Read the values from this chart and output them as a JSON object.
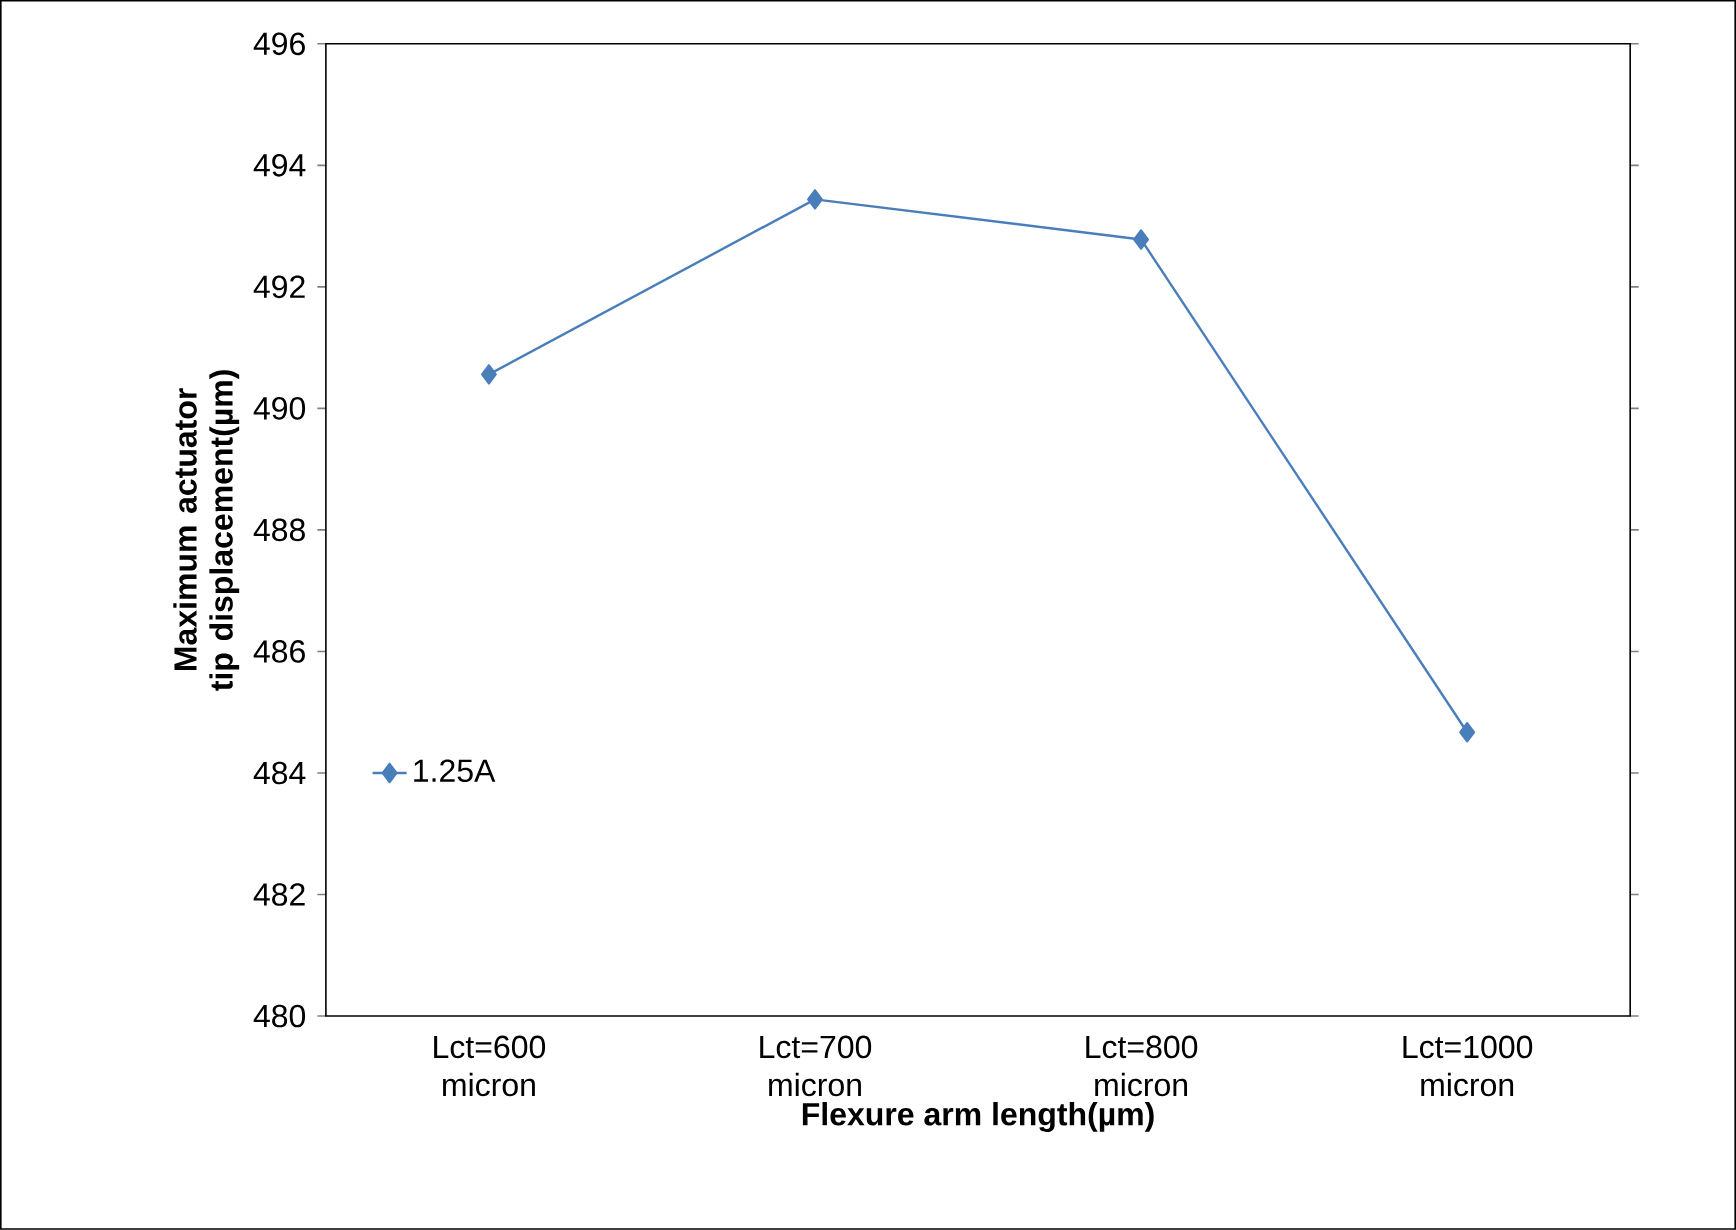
{
  "chart_data": {
    "type": "line",
    "xlabel": "Flexure arm length(µm)",
    "ylabel": "Maximum actuator tip displacement(µm)",
    "categories": [
      "Lct=600 micron",
      "Lct=700 micron",
      "Lct=800 micron",
      "Lct=1000 micron"
    ],
    "series": [
      {
        "name": "1.25A",
        "color": "#4a7ebb",
        "values": [
          490.56,
          493.44,
          492.78,
          484.67
        ]
      }
    ],
    "ylim": [
      480,
      496
    ],
    "yticks": [
      480,
      482,
      484,
      486,
      488,
      490,
      492,
      494,
      496
    ],
    "legend": "left",
    "marker": "diamond",
    "line_style": "solid",
    "grid": false
  }
}
